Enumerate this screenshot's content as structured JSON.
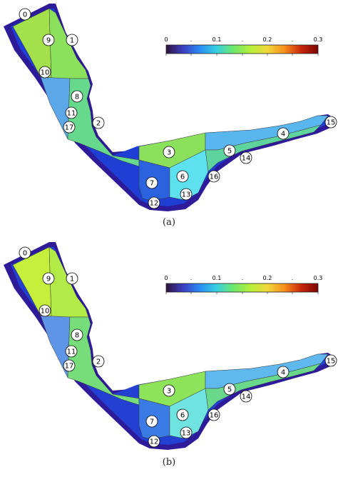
{
  "panels": [
    {
      "caption": "(a)",
      "colorbar_ticks": [
        "0",
        ".",
        "0.1",
        ".",
        "0.2",
        ".",
        "0.3"
      ],
      "region_labels": [
        "0",
        "9",
        "1",
        "10",
        "8",
        "11",
        "2",
        "17",
        "3",
        "7",
        "6",
        "13",
        "12",
        "16",
        "5",
        "14",
        "4",
        "15"
      ],
      "region_colors": {
        "upper_left": "#a3e04b",
        "upper_right": "#8ce15c",
        "left_mid": "#5ba7e8",
        "center_strip": "#67d98c",
        "bottom_green": "#8ce15c",
        "cell7": "#2a62df",
        "cell6": "#5ee1ef",
        "right_upper": "#5ab6ef",
        "right_lower": "#5fd39e",
        "outer_rim": "#2d1b9a",
        "inner_rim": "#1f3fd4"
      }
    },
    {
      "caption": "(b)",
      "colorbar_ticks": [
        "0",
        ".",
        "0.1",
        ".",
        "0.2",
        ".",
        "0.3"
      ],
      "region_labels": [
        "0",
        "9",
        "1",
        "10",
        "8",
        "11",
        "2",
        "17",
        "3",
        "7",
        "6",
        "13",
        "12",
        "16",
        "5",
        "14",
        "4",
        "15"
      ],
      "region_colors": {
        "upper_left": "#c6ef3c",
        "upper_right": "#b2ea48",
        "left_mid": "#5f95e6",
        "center_strip": "#76dd7a",
        "bottom_green": "#8de35a",
        "cell7": "#3a7be5",
        "cell6": "#6fe3e0",
        "right_upper": "#5fb8ee",
        "right_lower": "#6ad88a",
        "outer_rim": "#2d1b9a",
        "inner_rim": "#2240d2"
      }
    }
  ],
  "colorbar": {
    "stops": [
      "#30123b",
      "#3b3fc1",
      "#2a8cf3",
      "#35d0e0",
      "#6ee96a",
      "#b6f03a",
      "#f1d93a",
      "#f78f1c",
      "#c8270a",
      "#7a0403"
    ]
  }
}
